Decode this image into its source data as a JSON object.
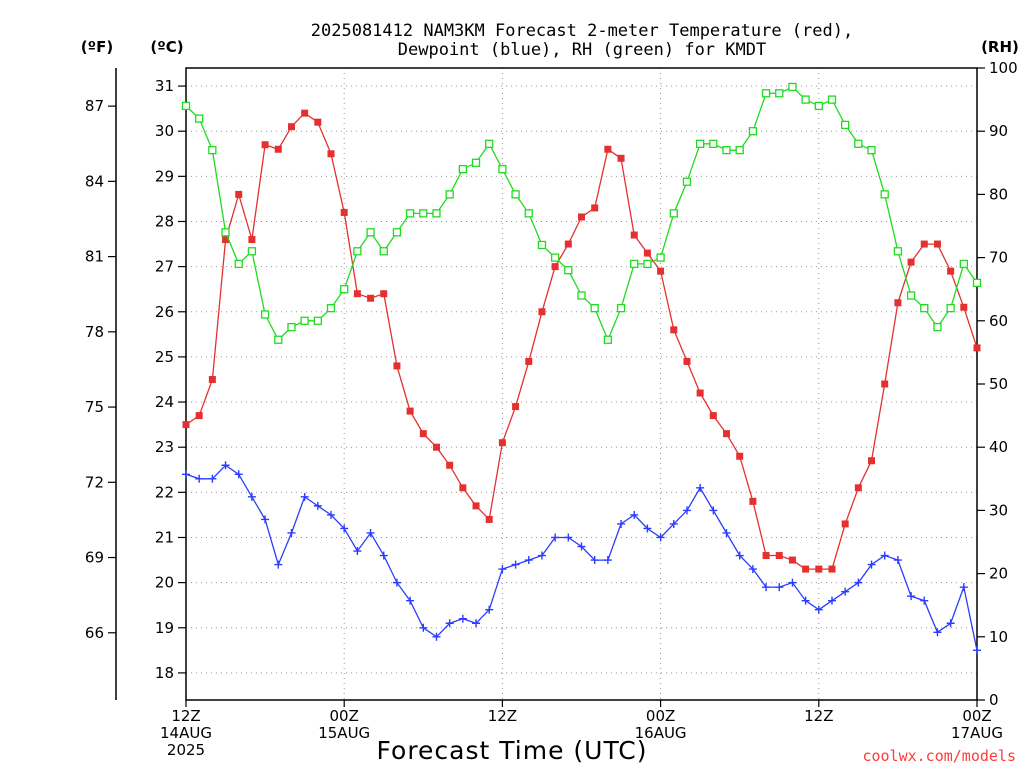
{
  "title_line1": "2025081412 NAM3KM Forecast 2-meter Temperature (red),",
  "title_line2": "Dewpoint (blue), RH (green) for KMDT",
  "credit": "coolwx.com/models",
  "chart_data": {
    "type": "line",
    "title": "2025081412 NAM3KM Forecast 2-meter Temperature (red), Dewpoint (blue), RH (green) for KMDT",
    "xlabel": "Forecast Time (UTC)",
    "x_hours": [
      0,
      1,
      2,
      3,
      4,
      5,
      6,
      7,
      8,
      9,
      10,
      11,
      12,
      13,
      14,
      15,
      16,
      17,
      18,
      19,
      20,
      21,
      22,
      23,
      24,
      25,
      26,
      27,
      28,
      29,
      30,
      31,
      32,
      33,
      34,
      35,
      36,
      37,
      38,
      39,
      40,
      41,
      42,
      43,
      44,
      45,
      46,
      47,
      48,
      49,
      50,
      51,
      52,
      53,
      54,
      55,
      56,
      57,
      58,
      59,
      60
    ],
    "x_ticks": [
      {
        "hour": 0,
        "lines": [
          "12Z",
          "14AUG",
          "2025"
        ]
      },
      {
        "hour": 12,
        "lines": [
          "00Z",
          "15AUG"
        ]
      },
      {
        "hour": 24,
        "lines": [
          "12Z"
        ]
      },
      {
        "hour": 36,
        "lines": [
          "00Z",
          "16AUG"
        ]
      },
      {
        "hour": 48,
        "lines": [
          "12Z"
        ]
      },
      {
        "hour": 60,
        "lines": [
          "00Z",
          "17AUG"
        ]
      }
    ],
    "y_left_c": {
      "label": "(ºC)",
      "range": [
        17.4,
        31.4
      ],
      "ticks": [
        18,
        19,
        20,
        21,
        22,
        23,
        24,
        25,
        26,
        27,
        28,
        29,
        30,
        31
      ]
    },
    "y_left_f": {
      "label": "(ºF)",
      "ticks": [
        66,
        69,
        72,
        75,
        78,
        81,
        84,
        87
      ]
    },
    "y_right_rh": {
      "label": "(RH)",
      "range": [
        0,
        100
      ],
      "ticks": [
        0,
        10,
        20,
        30,
        40,
        50,
        60,
        70,
        80,
        90,
        100
      ]
    },
    "grid": true,
    "series": [
      {
        "key": "temperature",
        "unit": "C",
        "color": "#e53030",
        "marker": "filled-square",
        "values": [
          23.5,
          23.7,
          24.5,
          27.6,
          28.6,
          27.6,
          29.7,
          29.6,
          30.1,
          30.4,
          30.2,
          29.5,
          28.2,
          26.4,
          26.3,
          26.4,
          24.8,
          23.8,
          23.3,
          23.0,
          22.6,
          22.1,
          21.7,
          21.4,
          23.1,
          23.9,
          24.9,
          26.0,
          27.0,
          27.5,
          28.1,
          28.3,
          29.6,
          29.4,
          27.7,
          27.3,
          26.9,
          25.6,
          24.9,
          24.2,
          23.7,
          23.3,
          22.8,
          21.8,
          20.6,
          20.6,
          20.5,
          20.3,
          20.3,
          20.3,
          21.3,
          22.1,
          22.7,
          24.4,
          26.2,
          27.1,
          27.5,
          27.5,
          26.9,
          26.1,
          25.2
        ]
      },
      {
        "key": "dewpoint",
        "unit": "C",
        "color": "#2a3dff",
        "marker": "plus",
        "values": [
          22.4,
          22.3,
          22.3,
          22.6,
          22.4,
          21.9,
          21.4,
          20.4,
          21.1,
          21.9,
          21.7,
          21.5,
          21.2,
          20.7,
          21.1,
          20.6,
          20.0,
          19.6,
          19.0,
          18.8,
          19.1,
          19.2,
          19.1,
          19.4,
          20.3,
          20.4,
          20.5,
          20.6,
          21.0,
          21.0,
          20.8,
          20.5,
          20.5,
          21.3,
          21.5,
          21.2,
          21.0,
          21.3,
          21.6,
          22.1,
          21.6,
          21.1,
          20.6,
          20.3,
          19.9,
          19.9,
          20.0,
          19.6,
          19.4,
          19.6,
          19.8,
          20.0,
          20.4,
          20.6,
          20.5,
          19.7,
          19.6,
          18.9,
          19.1,
          19.9,
          18.5
        ]
      },
      {
        "key": "rh",
        "unit": "%",
        "color": "#1fdc1f",
        "marker": "open-square",
        "values": [
          94,
          92,
          87,
          74,
          69,
          71,
          61,
          57,
          59,
          60,
          60,
          62,
          65,
          71,
          74,
          71,
          74,
          77,
          77,
          77,
          80,
          84,
          85,
          88,
          84,
          80,
          77,
          72,
          70,
          68,
          64,
          62,
          57,
          62,
          69,
          69,
          70,
          77,
          82,
          88,
          88,
          87,
          87,
          90,
          96,
          96,
          97,
          95,
          94,
          95,
          91,
          88,
          87,
          80,
          71,
          64,
          62,
          59,
          62,
          69,
          66
        ]
      }
    ]
  }
}
